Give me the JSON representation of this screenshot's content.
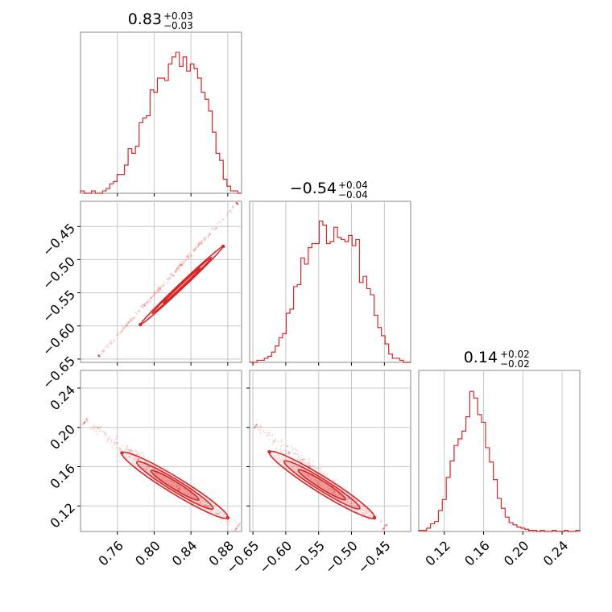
{
  "colors": {
    "accent": "#d62728",
    "grid": "#c8c8c8",
    "frame": "#888888"
  },
  "chart_data": [
    {
      "type": "histogram",
      "panel": "0,0",
      "title_value": "0.83",
      "title_plus": "+0.03",
      "title_minus": "−0.03",
      "xlim": [
        0.72,
        0.895
      ],
      "grid_ticks": [
        0.76,
        0.8,
        0.84,
        0.88
      ],
      "values": [
        1,
        0,
        0,
        1,
        0,
        0,
        1,
        2,
        4,
        5,
        8,
        8,
        12,
        19,
        17,
        20,
        30,
        32,
        33,
        44,
        43,
        49,
        49,
        48,
        55,
        58,
        60,
        54,
        58,
        52,
        55,
        53,
        49,
        43,
        40,
        35,
        26,
        17,
        14,
        6,
        3,
        1,
        1,
        0
      ],
      "ymax": 61
    },
    {
      "type": "scatter-density",
      "panel": "1,0",
      "xlim": [
        0.72,
        0.895
      ],
      "ylim": [
        -0.655,
        -0.412
      ],
      "grid_x": [
        0.76,
        0.8,
        0.84,
        0.88
      ],
      "yticks": [
        -0.45,
        -0.5,
        -0.55,
        -0.6,
        -0.65
      ],
      "ytick_labels": [
        "−0.45",
        "−0.50",
        "−0.55",
        "−0.60",
        "−0.65"
      ],
      "trend": {
        "x0": 0.74,
        "y0": -0.645,
        "x1": 0.89,
        "y1": -0.415
      },
      "core": {
        "x0": 0.785,
        "y0": -0.598,
        "x1": 0.875,
        "y1": -0.48
      }
    },
    {
      "type": "histogram",
      "panel": "1,1",
      "title_value": "−0.54",
      "title_plus": "+0.04",
      "title_minus": "−0.04",
      "xlim": [
        -0.655,
        -0.41
      ],
      "grid_ticks": [
        -0.65,
        -0.6,
        -0.55,
        -0.5,
        -0.45
      ],
      "values": [
        0,
        0,
        1,
        1,
        2,
        3,
        5,
        8,
        12,
        14,
        24,
        26,
        37,
        38,
        51,
        48,
        56,
        58,
        58,
        69,
        67,
        58,
        59,
        66,
        61,
        60,
        59,
        62,
        57,
        60,
        39,
        42,
        36,
        33,
        23,
        17,
        13,
        9,
        4,
        2,
        2,
        1,
        0,
        0
      ],
      "ymax": 70
    },
    {
      "type": "scatter-density",
      "panel": "2,0",
      "xlim": [
        0.72,
        0.895
      ],
      "ylim": [
        0.094,
        0.258
      ],
      "xticks": [
        0.76,
        0.8,
        0.84,
        0.88
      ],
      "xtick_labels": [
        "0.76",
        "0.80",
        "0.84",
        "0.88"
      ],
      "yticks": [
        0.24,
        0.2,
        0.16,
        0.12
      ],
      "ytick_labels": [
        "0.24",
        "0.20",
        "0.16",
        "0.12"
      ],
      "trend": {
        "x0": 0.725,
        "y0": 0.206,
        "x1": 0.89,
        "y1": 0.098
      },
      "core": {
        "x0": 0.765,
        "y0": 0.174,
        "x1": 0.88,
        "y1": 0.108
      }
    },
    {
      "type": "scatter-density",
      "panel": "2,1",
      "xlim": [
        -0.655,
        -0.41
      ],
      "ylim": [
        0.094,
        0.258
      ],
      "xticks": [
        -0.65,
        -0.6,
        -0.55,
        -0.5,
        -0.45
      ],
      "xtick_labels": [
        "−0.65",
        "−0.60",
        "−0.55",
        "−0.50",
        "−0.45"
      ],
      "grid_y": [
        0.24,
        0.2,
        0.16,
        0.12
      ],
      "trend": {
        "x0": -0.645,
        "y0": 0.202,
        "x1": -0.45,
        "y1": 0.098
      },
      "core": {
        "x0": -0.625,
        "y0": 0.175,
        "x1": -0.465,
        "y1": 0.108
      }
    },
    {
      "type": "histogram",
      "panel": "2,2",
      "title_value": "0.14",
      "title_plus": "+0.02",
      "title_minus": "−0.02",
      "xlim": [
        0.094,
        0.258
      ],
      "xticks": [
        0.12,
        0.16,
        0.2,
        0.24
      ],
      "xtick_labels": [
        "0.12",
        "0.16",
        "0.20",
        "0.24"
      ],
      "values": [
        1,
        1,
        3,
        7,
        9,
        19,
        29,
        49,
        64,
        78,
        84,
        91,
        104,
        127,
        121,
        106,
        99,
        76,
        63,
        47,
        30,
        21,
        13,
        8,
        6,
        4,
        3,
        2,
        1,
        1,
        0,
        1,
        0,
        0,
        1,
        0,
        0,
        1,
        0,
        0,
        1
      ],
      "ymax": 130
    }
  ]
}
